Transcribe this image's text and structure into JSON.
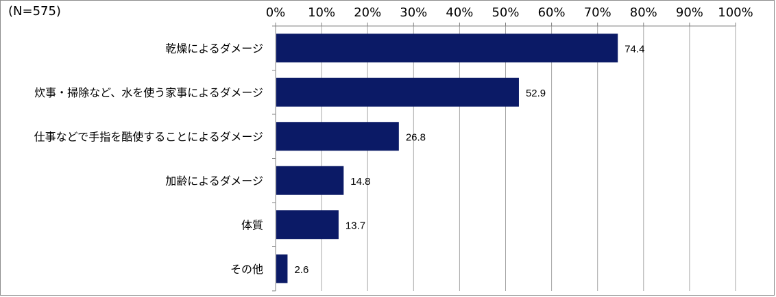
{
  "colors": {
    "bar": "#0b1a66",
    "grid": "#a6a6a6",
    "axis": "#808080",
    "frame": "#8c8c8c"
  },
  "chart_data": {
    "type": "bar",
    "orientation": "horizontal",
    "sample_size": "(N=575)",
    "categories": [
      "乾燥によるダメージ",
      "炊事・掃除など、水を使う家事によるダメージ",
      "仕事などで手指を酷使することによるダメージ",
      "加齢によるダメージ",
      "体質",
      "その他"
    ],
    "values": [
      74.4,
      52.9,
      26.8,
      14.8,
      13.7,
      2.6
    ],
    "value_labels": [
      "74.4",
      "52.9",
      "26.8",
      "14.8",
      "13.7",
      "2.6"
    ],
    "xlim": [
      0,
      100
    ],
    "x_ticks": [
      0,
      10,
      20,
      30,
      40,
      50,
      60,
      70,
      80,
      90,
      100
    ],
    "x_tick_labels": [
      "0%",
      "10%",
      "20%",
      "30%",
      "40%",
      "50%",
      "60%",
      "70%",
      "80%",
      "90%",
      "100%"
    ],
    "x_axis_position": "top",
    "grid": true,
    "legend": "none"
  }
}
